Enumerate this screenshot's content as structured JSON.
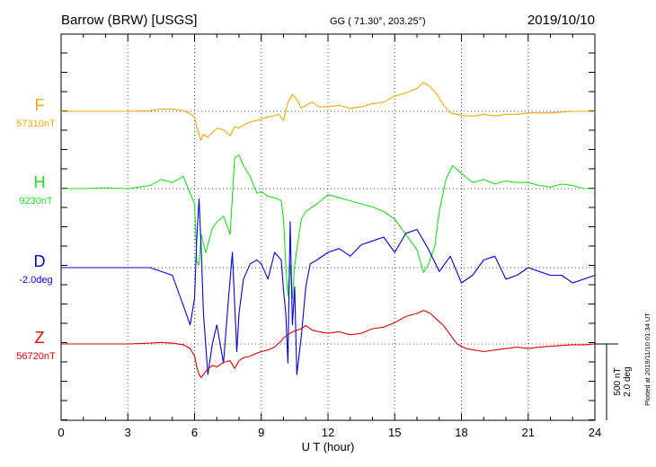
{
  "header": {
    "station": "Barrow (BRW)  [USGS]",
    "coords": "GG ( 71.30°, 203.25°)",
    "date": "2019/10/10"
  },
  "axis": {
    "xlabel": "U T (hour)"
  },
  "scale": {
    "nt": "500 nT",
    "deg": "2.0 deg"
  },
  "plotted": "Plotted at 2019/11/10 01:34 UT",
  "colors": {
    "F": "#f5a700",
    "H": "#1fe01f",
    "D": "#0000e0",
    "Z": "#e00000",
    "grid": "#555555",
    "frame": "#000000"
  },
  "chart_data": {
    "type": "line",
    "title": "Barrow (BRW)  [USGS]",
    "xlabel": "U T (hour)",
    "ylabel": "",
    "xlim": [
      0,
      24
    ],
    "x_ticks": [
      0,
      3,
      6,
      9,
      12,
      15,
      18,
      21,
      24
    ],
    "grid": true,
    "scale_bar": {
      "nT": 500,
      "deg": 2.0
    },
    "series": [
      {
        "name": "F",
        "label": "F",
        "baseline_label": "57310nT",
        "unit": "nT",
        "x": [
          0,
          1,
          2,
          3,
          4,
          4.5,
          5,
          5.5,
          5.8,
          6.0,
          6.1,
          6.2,
          6.3,
          6.4,
          6.6,
          6.8,
          7.0,
          7.3,
          7.6,
          7.8,
          8.0,
          8.2,
          8.5,
          8.8,
          9.0,
          9.2,
          9.5,
          9.8,
          10.0,
          10.2,
          10.4,
          10.6,
          10.8,
          11.0,
          11.3,
          11.6,
          12.0,
          12.5,
          13.0,
          13.5,
          14.0,
          14.5,
          15.0,
          15.5,
          16.0,
          16.3,
          16.6,
          16.9,
          17.2,
          17.5,
          17.8,
          18.2,
          18.6,
          19.0,
          19.5,
          20.0,
          20.5,
          21.0,
          21.5,
          22.0,
          22.5,
          23.0,
          23.5,
          24.0
        ],
        "y": [
          0,
          0,
          0,
          0,
          5,
          15,
          15,
          5,
          -15,
          -40,
          -100,
          -150,
          -190,
          -150,
          -170,
          -140,
          -110,
          -120,
          -160,
          -100,
          -110,
          -90,
          -70,
          -60,
          -50,
          -40,
          -30,
          -20,
          -60,
          60,
          110,
          80,
          20,
          40,
          60,
          30,
          30,
          40,
          20,
          30,
          50,
          60,
          100,
          120,
          150,
          190,
          160,
          110,
          40,
          -10,
          -20,
          -30,
          -30,
          -20,
          -30,
          -20,
          -20,
          -10,
          -10,
          -10,
          -5,
          0,
          0,
          0
        ]
      },
      {
        "name": "H",
        "label": "H",
        "baseline_label": "9230nT",
        "unit": "nT",
        "x": [
          0,
          1,
          2,
          3,
          4,
          4.5,
          5,
          5.5,
          5.8,
          6.0,
          6.1,
          6.2,
          6.3,
          6.5,
          6.8,
          7.0,
          7.3,
          7.6,
          7.8,
          8.0,
          8.2,
          8.5,
          8.8,
          9.0,
          9.3,
          9.6,
          9.9,
          10.0,
          10.1,
          10.2,
          10.3,
          10.4,
          10.5,
          10.6,
          10.8,
          11.0,
          11.5,
          12.0,
          12.5,
          13.0,
          13.5,
          14.0,
          14.5,
          15.0,
          15.5,
          16.0,
          16.3,
          16.5,
          16.8,
          17.0,
          17.3,
          17.6,
          18.0,
          18.5,
          19.0,
          19.5,
          20.0,
          20.5,
          21.0,
          21.5,
          22.0,
          22.5,
          23.0,
          23.5,
          24.0
        ],
        "y": [
          0,
          0,
          5,
          0,
          20,
          60,
          40,
          80,
          -30,
          -100,
          -480,
          -500,
          -300,
          -420,
          -260,
          -220,
          -180,
          -300,
          200,
          220,
          150,
          80,
          -30,
          -20,
          -50,
          -60,
          -80,
          -200,
          -500,
          -700,
          -500,
          -720,
          -500,
          -400,
          -200,
          -150,
          -100,
          -40,
          -60,
          -80,
          -100,
          -120,
          -150,
          -200,
          -300,
          -400,
          -550,
          -500,
          -380,
          -150,
          60,
          150,
          100,
          40,
          60,
          30,
          50,
          40,
          40,
          20,
          10,
          30,
          20,
          0,
          0
        ]
      },
      {
        "name": "D",
        "label": "D",
        "baseline_label": "-2.0deg",
        "unit": "deg",
        "x": [
          0,
          1,
          2,
          3,
          4,
          5,
          5.5,
          5.8,
          6.0,
          6.1,
          6.2,
          6.3,
          6.4,
          6.6,
          6.8,
          7.0,
          7.3,
          7.5,
          7.7,
          7.9,
          8.0,
          8.2,
          8.5,
          8.8,
          9.0,
          9.3,
          9.6,
          9.9,
          10.0,
          10.1,
          10.2,
          10.3,
          10.4,
          10.5,
          10.6,
          10.8,
          11.0,
          11.2,
          11.5,
          12.0,
          12.5,
          13.0,
          13.5,
          14.0,
          14.5,
          15.0,
          15.5,
          16.0,
          16.5,
          17.0,
          17.5,
          18.0,
          18.5,
          19.0,
          19.5,
          20.0,
          20.5,
          21.0,
          21.5,
          22.0,
          22.5,
          23.0,
          23.5,
          24.0
        ],
        "y": [
          0,
          0,
          0,
          0,
          0,
          -0.2,
          -1.0,
          -1.5,
          -0.8,
          0.8,
          1.8,
          0.5,
          -1.2,
          -2.8,
          -2.0,
          -1.5,
          -2.5,
          -1.0,
          0.4,
          -2.2,
          -1.2,
          -0.3,
          0.1,
          0.2,
          0.1,
          -0.3,
          0.4,
          0.2,
          -0.6,
          -1.2,
          -2.5,
          1.2,
          -1.5,
          -0.5,
          -2.8,
          -1.8,
          -0.5,
          0.1,
          0.2,
          0.4,
          0.5,
          0.3,
          0.6,
          0.7,
          0.8,
          0.4,
          0.9,
          1.0,
          0.5,
          -0.1,
          0.3,
          -0.4,
          -0.2,
          0.2,
          0.3,
          -0.3,
          -0.2,
          0.0,
          -0.1,
          -0.2,
          -0.2,
          -0.4,
          -0.3,
          -0.2
        ]
      },
      {
        "name": "Z",
        "label": "Z",
        "baseline_label": "56720nT",
        "unit": "nT",
        "x": [
          0,
          1,
          2,
          3,
          4,
          4.5,
          5,
          5.5,
          5.8,
          6.0,
          6.1,
          6.2,
          6.3,
          6.5,
          6.8,
          7.0,
          7.3,
          7.6,
          7.8,
          8.0,
          8.2,
          8.5,
          8.8,
          9.0,
          9.3,
          9.6,
          9.9,
          10.0,
          10.2,
          10.4,
          10.6,
          10.8,
          11.0,
          11.3,
          11.6,
          12.0,
          12.5,
          13.0,
          13.5,
          14.0,
          14.5,
          15.0,
          15.5,
          16.0,
          16.3,
          16.6,
          16.9,
          17.2,
          17.5,
          17.8,
          18.2,
          18.6,
          19.0,
          19.5,
          20.0,
          20.5,
          21.0,
          21.5,
          22.0,
          22.5,
          23.0,
          23.5,
          24.0
        ],
        "y": [
          0,
          0,
          0,
          0,
          5,
          10,
          5,
          -5,
          -30,
          -80,
          -150,
          -200,
          -220,
          -180,
          -140,
          -150,
          -120,
          -110,
          -160,
          -110,
          -90,
          -80,
          -60,
          -50,
          -40,
          -20,
          20,
          40,
          60,
          80,
          90,
          100,
          120,
          90,
          80,
          70,
          80,
          60,
          70,
          100,
          110,
          140,
          180,
          200,
          220,
          200,
          160,
          120,
          60,
          0,
          -30,
          -40,
          -50,
          -40,
          -30,
          -20,
          -30,
          -20,
          -15,
          -10,
          -5,
          -5,
          0
        ]
      }
    ]
  }
}
